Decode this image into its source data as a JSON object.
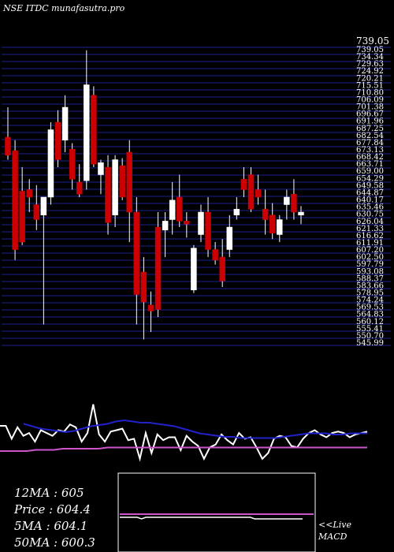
{
  "header": {
    "title": "NSE ITDC munafasutra.pro"
  },
  "colors": {
    "background": "#000000",
    "grid": "#1c1f8f",
    "bull": "#ffffff",
    "bear": "#cc0000",
    "wick": "#ffffff",
    "price_line": "#ffffff",
    "ma_fast": "#2222cc",
    "ma_slow": "#cc55cc",
    "macd_line": "#ffffff",
    "macd_signal": "#cc55cc",
    "macd_box_border": "#ffffff"
  },
  "price_axis": {
    "top_label": "739.05",
    "tick_labels": [
      "739.05",
      "734.34",
      "729.63",
      "724.92",
      "720.21",
      "715.51",
      "710.80",
      "706.09",
      "701.38",
      "696.67",
      "691.96",
      "687.25",
      "682.54",
      "677.84",
      "673.13",
      "668.42",
      "663.71",
      "659.00",
      "654.29",
      "649.58",
      "644.87",
      "640.17",
      "635.46",
      "630.75",
      "626.04",
      "621.33",
      "616.62",
      "611.91",
      "607.20",
      "602.50",
      "597.79",
      "593.08",
      "588.37",
      "583.66",
      "578.95",
      "574.24",
      "569.53",
      "564.83",
      "560.12",
      "555.41",
      "550.70",
      "545.99"
    ]
  },
  "chart_data": [
    {
      "type": "candlestick",
      "title": "NSE ITDC munafasutra.pro",
      "ylim": [
        540,
        740
      ],
      "grid": true,
      "candles": [
        {
          "open": 680,
          "high": 700,
          "low": 665,
          "close": 668
        },
        {
          "open": 671,
          "high": 678,
          "low": 598,
          "close": 605
        },
        {
          "open": 644,
          "high": 660,
          "low": 608,
          "close": 610
        },
        {
          "open": 645,
          "high": 652,
          "low": 630,
          "close": 640
        },
        {
          "open": 635,
          "high": 648,
          "low": 618,
          "close": 625
        },
        {
          "open": 628,
          "high": 640,
          "low": 555,
          "close": 640
        },
        {
          "open": 640,
          "high": 690,
          "low": 635,
          "close": 685
        },
        {
          "open": 690,
          "high": 698,
          "low": 660,
          "close": 665
        },
        {
          "open": 678,
          "high": 708,
          "low": 670,
          "close": 700
        },
        {
          "open": 672,
          "high": 676,
          "low": 645,
          "close": 652
        },
        {
          "open": 650,
          "high": 662,
          "low": 640,
          "close": 642
        },
        {
          "open": 651,
          "high": 738,
          "low": 645,
          "close": 715
        },
        {
          "open": 708,
          "high": 714,
          "low": 660,
          "close": 662
        },
        {
          "open": 655,
          "high": 665,
          "low": 642,
          "close": 663
        },
        {
          "open": 660,
          "high": 668,
          "low": 615,
          "close": 623
        },
        {
          "open": 628,
          "high": 668,
          "low": 620,
          "close": 665
        },
        {
          "open": 661,
          "high": 666,
          "low": 638,
          "close": 640
        },
        {
          "open": 670,
          "high": 678,
          "low": 610,
          "close": 630
        },
        {
          "open": 630,
          "high": 640,
          "low": 555,
          "close": 575
        },
        {
          "open": 590,
          "high": 600,
          "low": 545,
          "close": 570
        },
        {
          "open": 568,
          "high": 577,
          "low": 550,
          "close": 564
        },
        {
          "open": 620,
          "high": 630,
          "low": 560,
          "close": 565
        },
        {
          "open": 618,
          "high": 630,
          "low": 600,
          "close": 624
        },
        {
          "open": 625,
          "high": 650,
          "low": 615,
          "close": 638
        },
        {
          "open": 640,
          "high": 655,
          "low": 620,
          "close": 624
        },
        {
          "open": 624,
          "high": 630,
          "low": 613,
          "close": 622
        },
        {
          "open": 578,
          "high": 608,
          "low": 576,
          "close": 606
        },
        {
          "open": 615,
          "high": 635,
          "low": 610,
          "close": 630
        },
        {
          "open": 630,
          "high": 640,
          "low": 600,
          "close": 605
        },
        {
          "open": 605,
          "high": 610,
          "low": 595,
          "close": 598
        },
        {
          "open": 600,
          "high": 612,
          "low": 580,
          "close": 584
        },
        {
          "open": 605,
          "high": 628,
          "low": 600,
          "close": 620
        },
        {
          "open": 628,
          "high": 640,
          "low": 625,
          "close": 632
        },
        {
          "open": 652,
          "high": 660,
          "low": 640,
          "close": 645
        },
        {
          "open": 655,
          "high": 660,
          "low": 630,
          "close": 632
        },
        {
          "open": 645,
          "high": 655,
          "low": 635,
          "close": 640
        },
        {
          "open": 632,
          "high": 645,
          "low": 615,
          "close": 625
        },
        {
          "open": 628,
          "high": 636,
          "low": 612,
          "close": 616
        },
        {
          "open": 615,
          "high": 628,
          "low": 610,
          "close": 625
        },
        {
          "open": 635,
          "high": 645,
          "low": 625,
          "close": 640
        },
        {
          "open": 642,
          "high": 652,
          "low": 625,
          "close": 630
        },
        {
          "open": 628,
          "high": 634,
          "low": 622,
          "close": 630
        }
      ],
      "ma_fast": [
        640,
        638,
        636,
        635,
        634,
        633,
        634,
        636,
        638,
        639,
        640,
        642,
        643,
        642,
        641,
        641,
        640,
        639,
        638,
        636,
        634,
        632,
        631,
        630,
        629,
        629,
        628,
        628,
        628,
        628,
        628,
        629,
        630,
        631,
        632,
        632,
        632,
        631,
        631,
        632,
        632,
        632
      ],
      "ma_slow": [
        625,
        625,
        625,
        625,
        626,
        626,
        626,
        627,
        627,
        627,
        627,
        627,
        628,
        628,
        628,
        628,
        628,
        628,
        628,
        628,
        628,
        628,
        628,
        628,
        628,
        628,
        628,
        628,
        628,
        628,
        628,
        628,
        628,
        628,
        628,
        628,
        628,
        628,
        628,
        628,
        628,
        628
      ]
    },
    {
      "type": "line",
      "title": "MACD",
      "ylim": [
        -30,
        25
      ],
      "series": [
        {
          "name": "",
          "values": [
            3,
            3,
            -6,
            2,
            -4,
            -2,
            -8,
            0,
            -2,
            -4,
            0,
            -1,
            4,
            2,
            -8,
            -2,
            18,
            -3,
            -8,
            -1,
            0,
            1,
            -7,
            -6,
            -20,
            -2,
            -16,
            -3,
            -7,
            -5,
            -5,
            -14,
            -4,
            -8,
            -11,
            -20,
            -12,
            -10,
            -3,
            -7,
            -10,
            -2,
            -6,
            -5,
            -12,
            -20,
            -16,
            -6,
            -4,
            -5,
            -11,
            -12,
            -6,
            -2,
            0,
            -3,
            -5,
            -2,
            -1,
            -2,
            -5,
            -3,
            -2,
            -1
          ]
        },
        {
          "name": "",
          "values": [
            -1,
            -1,
            -1,
            -1,
            -1,
            -1,
            -1,
            -1,
            -1,
            -1,
            -1,
            -1,
            -1,
            -1,
            -1,
            -1,
            -1,
            -1,
            -1,
            -1,
            -1,
            -1,
            -1,
            -1,
            -1,
            -1,
            -1,
            -1,
            -1,
            -1,
            -1,
            -1,
            -1,
            -1,
            -1,
            -1,
            -1,
            -1,
            -1,
            -1,
            -1,
            -1,
            -1,
            -1,
            -1,
            -1,
            -1,
            -1,
            -1,
            -1,
            -1,
            -1,
            -1,
            -1,
            -1,
            -1,
            -1,
            -1,
            -1,
            -1,
            -1,
            -1,
            -1,
            -1
          ]
        }
      ]
    }
  ],
  "macd_mini": {
    "flat": 0,
    "line_values": [
      0,
      0,
      0,
      0,
      0,
      -1,
      0,
      0,
      0,
      0,
      0,
      0,
      0,
      0,
      0,
      0,
      0,
      0,
      0,
      0,
      0,
      0,
      0,
      0,
      0,
      0,
      0,
      0,
      0,
      0,
      0,
      -1,
      -1,
      -1,
      -1,
      -1,
      -1,
      -1,
      -1,
      -1,
      -1,
      -1,
      -1
    ],
    "ylim": [
      -10,
      10
    ]
  },
  "info": {
    "ma12": "12MA : 605",
    "price": "Price   : 604.4",
    "ma5": "5MA : 604.1",
    "ma50": "50MA : 600.3"
  },
  "macd_label": {
    "line1": "<<Live",
    "line2": "MACD"
  }
}
